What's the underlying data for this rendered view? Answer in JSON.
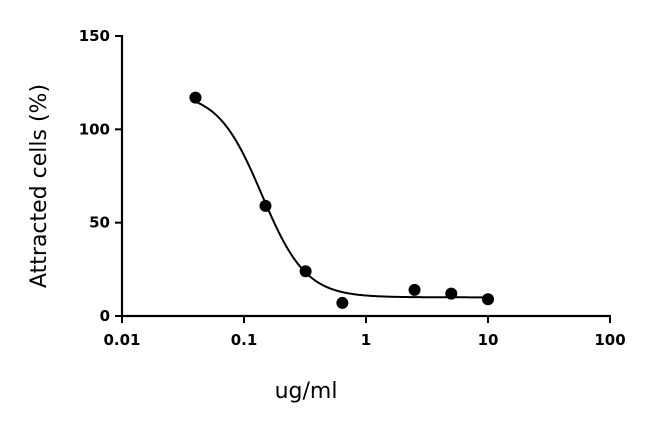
{
  "chart_data": {
    "type": "scatter",
    "xscale": "log",
    "xlabel": "ug/ml",
    "ylabel": "Attracted cells (%)",
    "xlim": [
      0.01,
      100
    ],
    "ylim": [
      0,
      150
    ],
    "xticks": [
      0.01,
      0.1,
      1,
      10,
      100
    ],
    "xtick_labels": [
      "0.01",
      "0.1",
      "1",
      "10",
      "100"
    ],
    "yticks": [
      0,
      50,
      100,
      150
    ],
    "ytick_labels": [
      "0",
      "50",
      "100",
      "150"
    ],
    "grid": false,
    "points": [
      {
        "x": 0.04,
        "y": 117
      },
      {
        "x": 0.15,
        "y": 59
      },
      {
        "x": 0.32,
        "y": 24
      },
      {
        "x": 0.64,
        "y": 7
      },
      {
        "x": 2.5,
        "y": 14
      },
      {
        "x": 5,
        "y": 12
      },
      {
        "x": 10,
        "y": 9
      }
    ],
    "fit": {
      "model": "sigmoidal dose-response",
      "top": 120,
      "bottom": 10,
      "ec50": 0.14,
      "hill": 2.4,
      "range": [
        0.04,
        10
      ]
    }
  }
}
